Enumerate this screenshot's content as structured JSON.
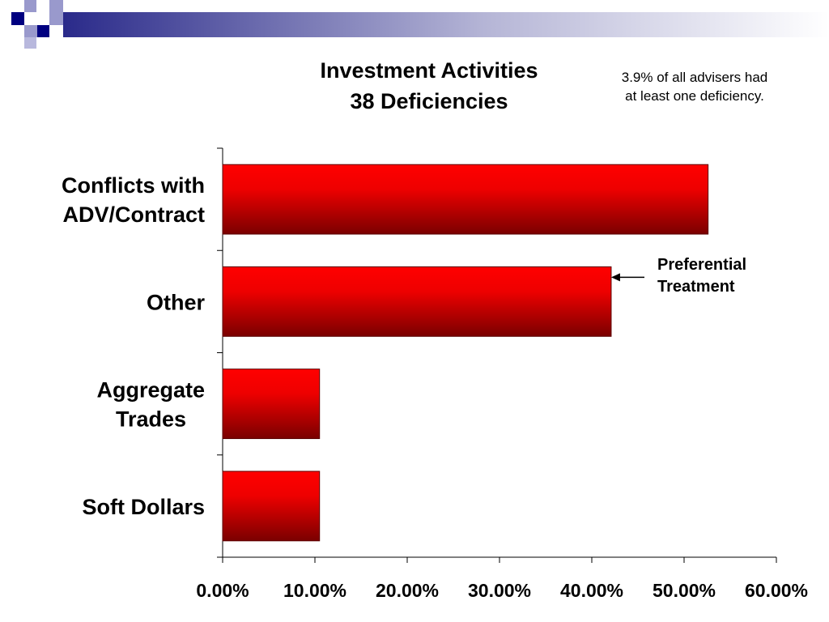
{
  "header": {
    "colors": {
      "dark": "#000080",
      "light": "#9999cc"
    }
  },
  "chart_data": {
    "type": "bar",
    "orientation": "horizontal",
    "title_lines": [
      "Investment Activities",
      "38 Deficiencies"
    ],
    "note_lines": [
      "3.9% of all advisers had",
      "at least one deficiency."
    ],
    "categories": [
      [
        "Conflicts with",
        "ADV/Contract"
      ],
      [
        "Other"
      ],
      [
        "Aggregate",
        "Trades"
      ],
      [
        "Soft Dollars"
      ]
    ],
    "values": [
      52.6,
      42.1,
      10.5,
      10.5
    ],
    "xlim": [
      0,
      60
    ],
    "x_ticks": [
      "0.00%",
      "10.00%",
      "20.00%",
      "30.00%",
      "40.00%",
      "50.00%",
      "60.00%"
    ],
    "x_tick_values": [
      0,
      10,
      20,
      30,
      40,
      50,
      60
    ],
    "annotation": {
      "target_category": "Other",
      "lines": [
        "Preferential",
        "Treatment"
      ]
    },
    "bar_gradient": {
      "top": "#ff0000",
      "bottom": "#7a0000"
    },
    "grid": false,
    "legend": "none"
  }
}
